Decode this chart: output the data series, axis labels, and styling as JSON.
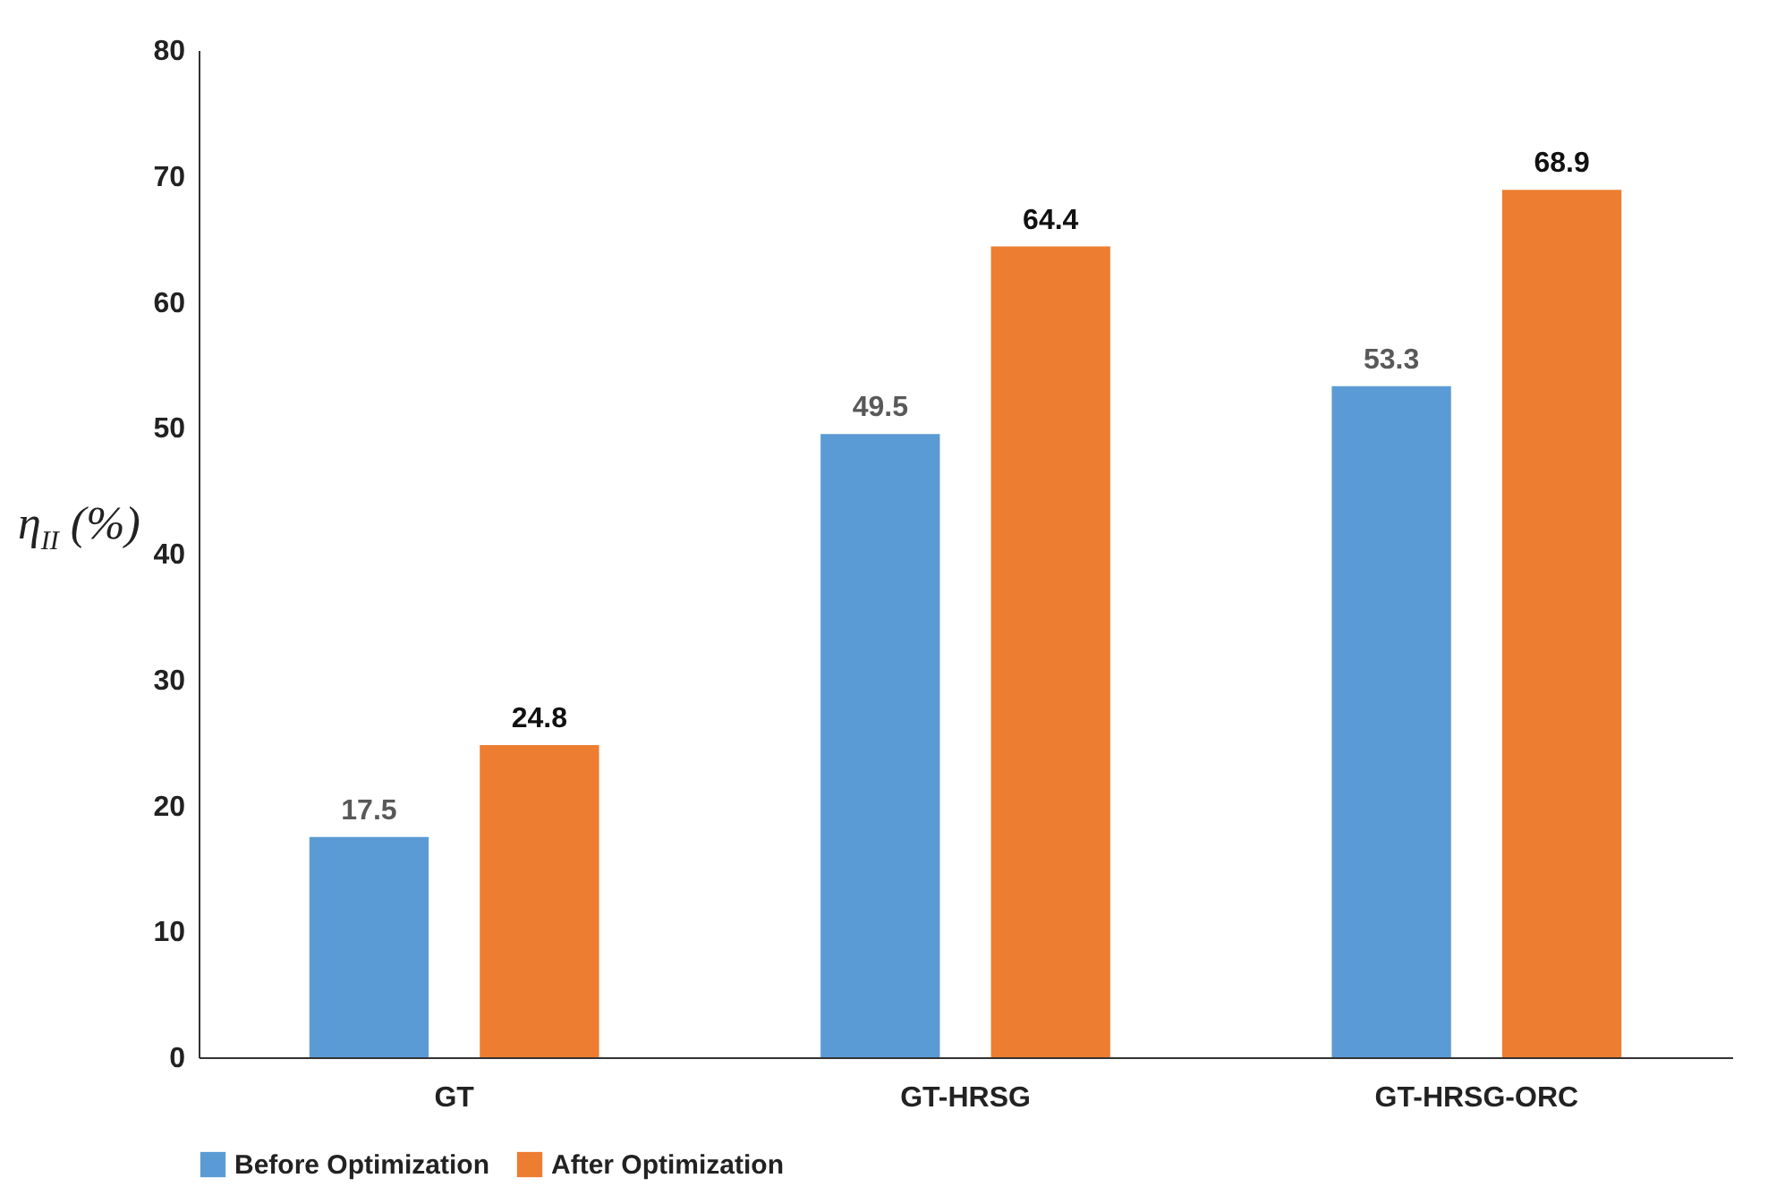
{
  "chart_data": {
    "type": "bar",
    "ylabel": "η$_{II}$ (%)",
    "categories": [
      "GT",
      "GT-HRSG",
      "GT-HRSG-ORC"
    ],
    "series": [
      {
        "name": "Before Optimization",
        "color": "#5b9bd5",
        "values": [
          17.5,
          49.5,
          53.3
        ]
      },
      {
        "name": "After Optimization",
        "color": "#ed7d31",
        "values": [
          24.8,
          64.4,
          68.9
        ]
      }
    ],
    "ylim": [
      0,
      80
    ],
    "yticks": [
      0,
      10,
      20,
      30,
      40,
      50,
      60,
      70,
      80
    ],
    "data_labels": true,
    "legend": "bottom",
    "grid": false
  }
}
